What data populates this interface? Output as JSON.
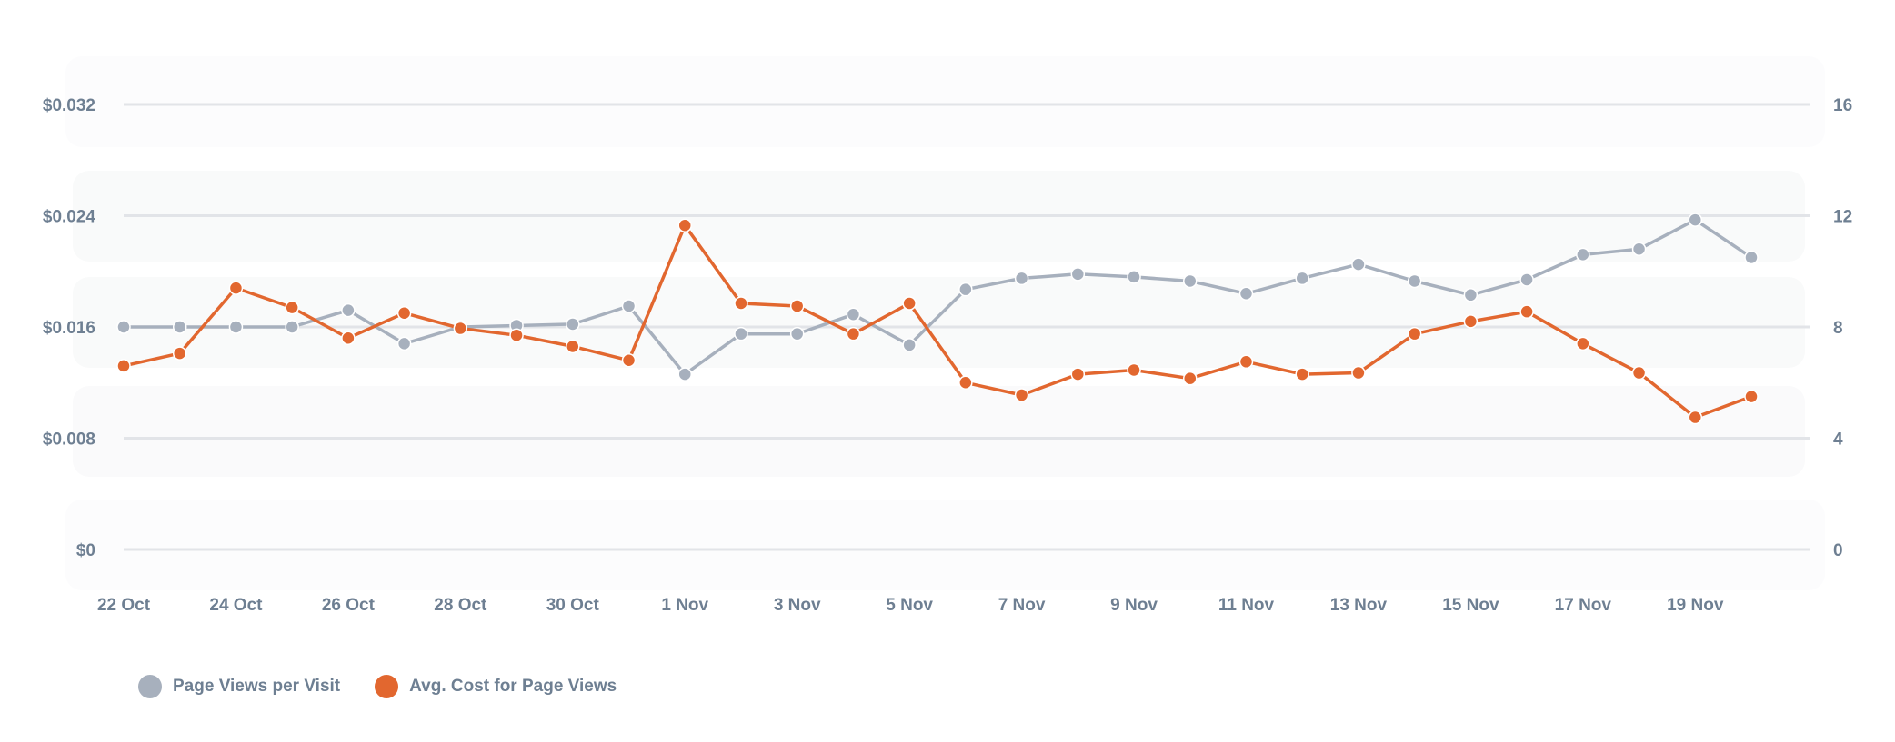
{
  "chart_data": {
    "type": "line",
    "title": "",
    "categories": [
      "22 Oct",
      "23 Oct",
      "24 Oct",
      "25 Oct",
      "26 Oct",
      "27 Oct",
      "28 Oct",
      "29 Oct",
      "30 Oct",
      "31 Oct",
      "1 Nov",
      "2 Nov",
      "3 Nov",
      "4 Nov",
      "5 Nov",
      "6 Nov",
      "7 Nov",
      "8 Nov",
      "9 Nov",
      "10 Nov",
      "11 Nov",
      "12 Nov",
      "13 Nov",
      "14 Nov",
      "15 Nov",
      "16 Nov",
      "17 Nov",
      "18 Nov",
      "19 Nov",
      "20 Nov"
    ],
    "x_tick_labels": [
      "22 Oct",
      "24 Oct",
      "26 Oct",
      "28 Oct",
      "30 Oct",
      "1 Nov",
      "3 Nov",
      "5 Nov",
      "7 Nov",
      "9 Nov",
      "11 Nov",
      "13 Nov",
      "15 Nov",
      "17 Nov",
      "19 Nov"
    ],
    "y_left": {
      "ticks": [
        "$0",
        "$0.008",
        "$0.016",
        "$0.024",
        "$0.032"
      ],
      "range": [
        0,
        0.032
      ]
    },
    "y_right": {
      "ticks": [
        "0",
        "4",
        "8",
        "12",
        "16"
      ],
      "range": [
        0,
        16
      ]
    },
    "grid": true,
    "legend_position": "bottom-left",
    "series": [
      {
        "name": "Page Views per Visit",
        "axis": "right",
        "color": "#a7b0bd",
        "values": [
          8.0,
          8.0,
          8.0,
          8.0,
          8.6,
          7.4,
          8.0,
          8.05,
          8.1,
          8.75,
          6.3,
          7.75,
          7.75,
          8.45,
          7.35,
          9.35,
          9.75,
          9.9,
          9.8,
          9.65,
          9.2,
          9.75,
          10.25,
          9.65,
          9.15,
          9.7,
          10.6,
          10.8,
          11.85,
          10.5
        ]
      },
      {
        "name": "Avg. Cost for Page Views",
        "axis": "left",
        "color": "#e2672f",
        "values": [
          0.0132,
          0.0141,
          0.0188,
          0.0174,
          0.0152,
          0.017,
          0.0159,
          0.0154,
          0.0146,
          0.0136,
          0.0233,
          0.0177,
          0.0175,
          0.0155,
          0.0177,
          0.012,
          0.0111,
          0.0126,
          0.0129,
          0.0123,
          0.0135,
          0.0126,
          0.0127,
          0.0155,
          0.0164,
          0.0171,
          0.0148,
          0.0127,
          0.0095,
          0.011
        ]
      }
    ]
  },
  "legend": {
    "items": [
      {
        "label": "Page Views per Visit",
        "color": "#a7b0bd"
      },
      {
        "label": "Avg. Cost for Page Views",
        "color": "#e2672f"
      }
    ]
  }
}
